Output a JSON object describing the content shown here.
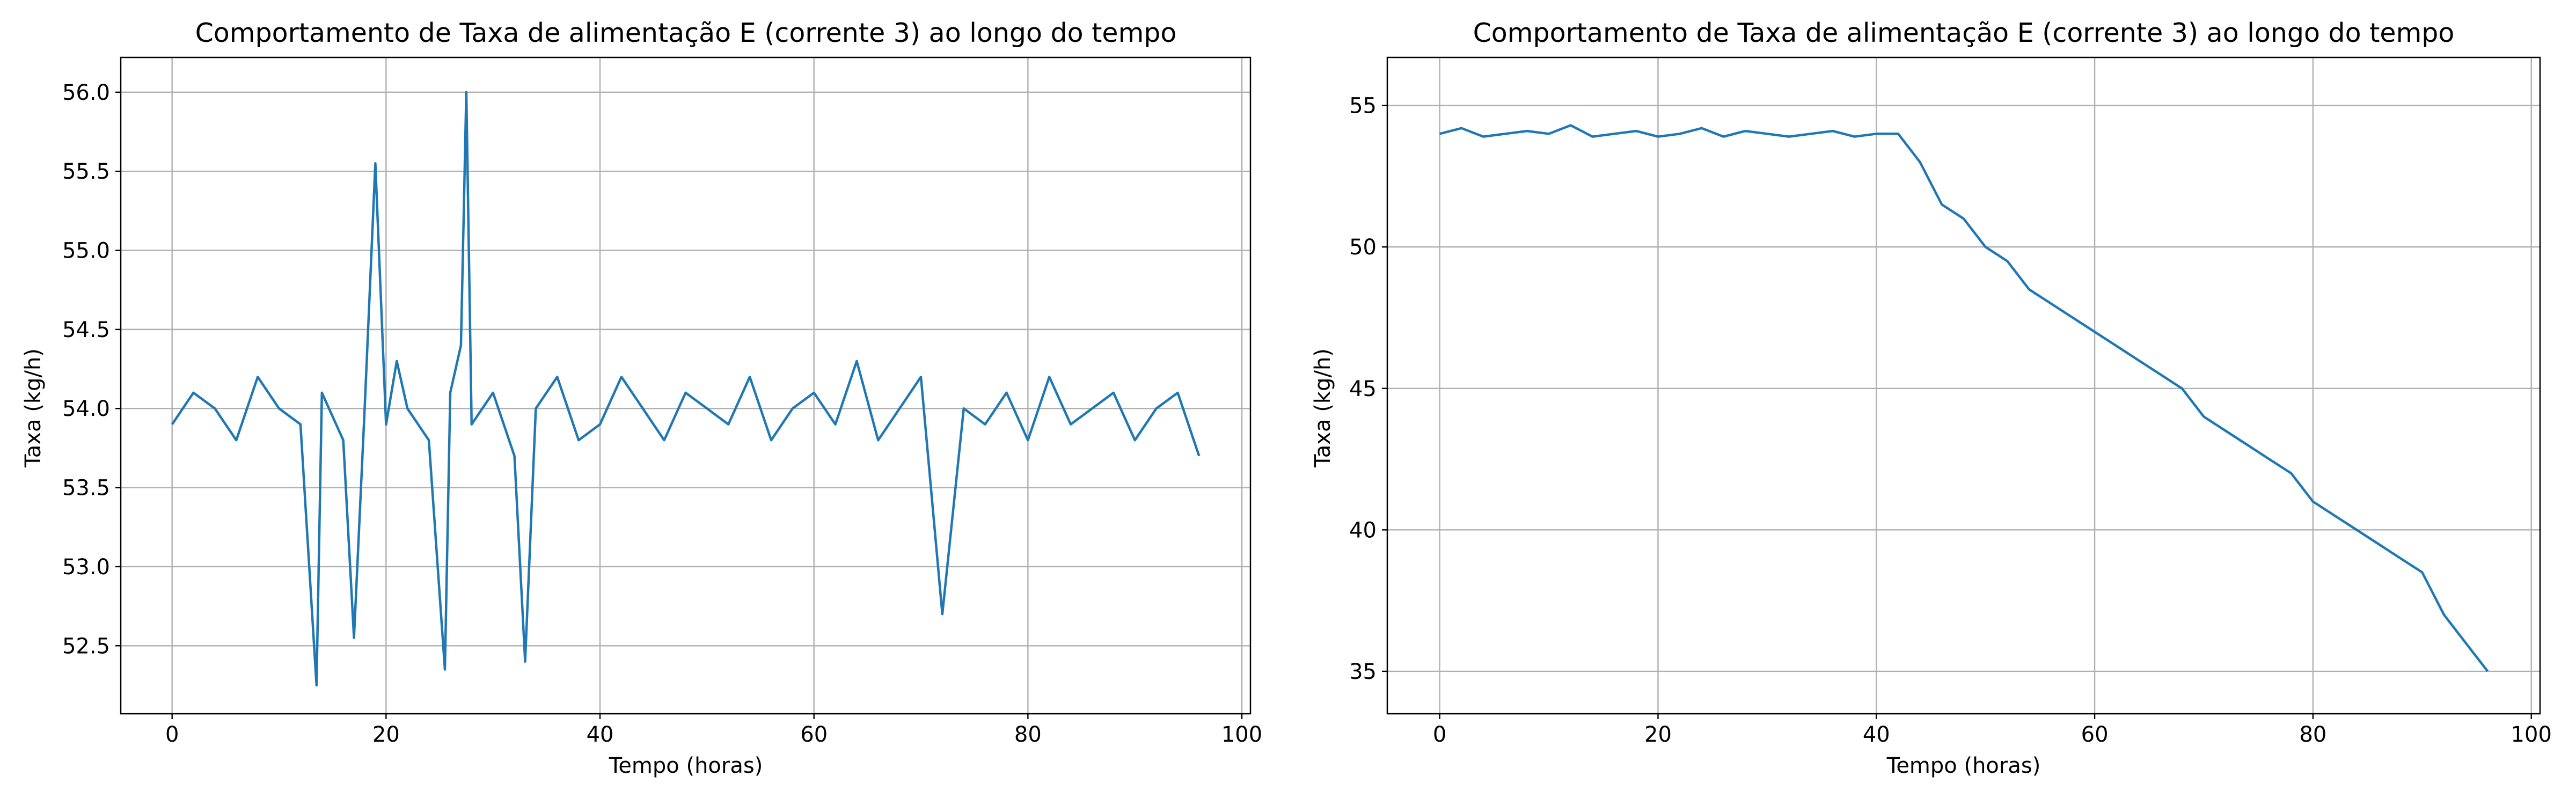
{
  "chart_data": [
    {
      "type": "line",
      "title": "Comportamento de Taxa de alimentação E (corrente 3) ao longo do tempo",
      "xlabel": "Tempo (horas)",
      "ylabel": "Taxa (kg/h)",
      "xlim": [
        -4.8,
        100.8
      ],
      "ylim": [
        52.07,
        56.22
      ],
      "xticks": [
        0,
        20,
        40,
        60,
        80,
        100
      ],
      "yticks": [
        52.5,
        53.0,
        53.5,
        54.0,
        54.5,
        55.0,
        55.5,
        56.0
      ],
      "grid": true,
      "color": "#1f77b4",
      "series": [
        {
          "x": [
            0,
            2,
            4,
            6,
            8,
            10,
            12,
            13.5,
            14,
            16,
            17,
            18,
            19,
            20,
            21,
            22,
            24,
            25.5,
            26,
            27,
            27.5,
            28,
            30,
            32,
            33,
            34,
            36,
            38,
            40,
            42,
            44,
            46,
            48,
            50,
            52,
            54,
            56,
            58,
            60,
            62,
            64,
            66,
            68,
            70,
            72,
            74,
            76,
            78,
            80,
            82,
            84,
            86,
            88,
            90,
            92,
            94,
            96
          ],
          "y": [
            53.9,
            54.1,
            54.0,
            53.8,
            54.2,
            54.0,
            53.9,
            52.25,
            54.1,
            53.8,
            52.55,
            54.0,
            55.55,
            53.9,
            54.3,
            54.0,
            53.8,
            52.35,
            54.1,
            54.4,
            56.0,
            53.9,
            54.1,
            53.7,
            52.4,
            54.0,
            54.2,
            53.8,
            53.9,
            54.2,
            54.0,
            53.8,
            54.1,
            54.0,
            53.9,
            54.2,
            53.8,
            54.0,
            54.1,
            53.9,
            54.3,
            53.8,
            54.0,
            54.2,
            52.7,
            54.0,
            53.9,
            54.1,
            53.8,
            54.2,
            53.9,
            54.0,
            54.1,
            53.8,
            54.0,
            54.1,
            53.7
          ]
        }
      ]
    },
    {
      "type": "line",
      "title": "Comportamento de Taxa de alimentação E (corrente 3) ao longo do tempo",
      "xlabel": "Tempo (horas)",
      "ylabel": "Taxa (kg/h)",
      "xlim": [
        -4.8,
        100.8
      ],
      "ylim": [
        33.5,
        56.7
      ],
      "xticks": [
        0,
        20,
        40,
        60,
        80,
        100
      ],
      "yticks": [
        35,
        40,
        45,
        50,
        55
      ],
      "grid": true,
      "color": "#1f77b4",
      "series": [
        {
          "x": [
            0,
            2,
            4,
            6,
            8,
            10,
            12,
            14,
            16,
            18,
            20,
            22,
            24,
            26,
            28,
            30,
            32,
            34,
            36,
            38,
            40,
            42,
            44,
            46,
            48,
            50,
            52,
            54,
            56,
            58,
            60,
            62,
            64,
            66,
            68,
            70,
            72,
            74,
            76,
            78,
            80,
            82,
            84,
            86,
            88,
            90,
            92,
            94,
            96
          ],
          "y": [
            54.0,
            54.2,
            53.9,
            54.0,
            54.1,
            54.0,
            54.3,
            53.9,
            54.0,
            54.1,
            53.9,
            54.0,
            54.2,
            53.9,
            54.1,
            54.0,
            53.9,
            54.0,
            54.1,
            53.9,
            54.0,
            54.0,
            53.0,
            51.5,
            51.0,
            50.0,
            49.5,
            48.5,
            48.0,
            47.5,
            47.0,
            46.5,
            46.0,
            45.5,
            45.0,
            44.0,
            43.5,
            43.0,
            42.5,
            42.0,
            41.0,
            40.5,
            40.0,
            39.5,
            39.0,
            38.5,
            37.0,
            36.0,
            35.0
          ]
        }
      ]
    }
  ]
}
